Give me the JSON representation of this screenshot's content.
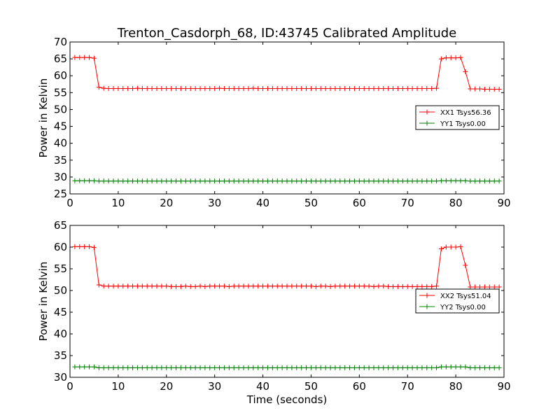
{
  "figure": {
    "title": "Trenton_Casdorph_68, ID:43745 Calibrated Amplitude",
    "xlabel": "Time (seconds)"
  },
  "colors": {
    "red": "#ff0000",
    "green": "#008000"
  },
  "chart_data": [
    {
      "type": "line",
      "ylabel": "Power in Kelvin",
      "xlim": [
        0,
        90
      ],
      "ylim": [
        25,
        70
      ],
      "xticks": [
        0,
        10,
        20,
        30,
        40,
        50,
        60,
        70,
        80,
        90
      ],
      "yticks": [
        25,
        30,
        35,
        40,
        45,
        50,
        55,
        60,
        65,
        70
      ],
      "grid": false,
      "legend_position": "right",
      "series": [
        {
          "name": "XX1 Tsys56.36",
          "color": "#ff0000",
          "marker": "+",
          "x": [
            1,
            2,
            3,
            4,
            5,
            6,
            7,
            8,
            9,
            10,
            11,
            12,
            13,
            14,
            15,
            16,
            17,
            18,
            19,
            20,
            21,
            22,
            23,
            24,
            25,
            26,
            27,
            28,
            29,
            30,
            31,
            32,
            33,
            34,
            35,
            36,
            37,
            38,
            39,
            40,
            41,
            42,
            43,
            44,
            45,
            46,
            47,
            48,
            49,
            50,
            51,
            52,
            53,
            54,
            55,
            56,
            57,
            58,
            59,
            60,
            61,
            62,
            63,
            64,
            65,
            66,
            67,
            68,
            69,
            70,
            71,
            72,
            73,
            74,
            75,
            76,
            77,
            78,
            79,
            80,
            81,
            82,
            83,
            84,
            85,
            86,
            87,
            88,
            89
          ],
          "y": [
            65.4,
            65.4,
            65.4,
            65.4,
            65.2,
            56.6,
            56.3,
            56.2,
            56.2,
            56.2,
            56.2,
            56.2,
            56.2,
            56.3,
            56.2,
            56.2,
            56.2,
            56.2,
            56.2,
            56.2,
            56.2,
            56.2,
            56.2,
            56.2,
            56.2,
            56.2,
            56.2,
            56.2,
            56.2,
            56.2,
            56.3,
            56.2,
            56.2,
            56.2,
            56.2,
            56.2,
            56.2,
            56.3,
            56.2,
            56.2,
            56.2,
            56.2,
            56.2,
            56.2,
            56.2,
            56.2,
            56.2,
            56.2,
            56.2,
            56.2,
            56.2,
            56.2,
            56.2,
            56.2,
            56.2,
            56.2,
            56.2,
            56.2,
            56.2,
            56.2,
            56.2,
            56.2,
            56.2,
            56.2,
            56.2,
            56.2,
            56.2,
            56.2,
            56.2,
            56.2,
            56.2,
            56.2,
            56.2,
            56.2,
            56.2,
            56.3,
            65.0,
            65.3,
            65.3,
            65.3,
            65.4,
            61.2,
            56.1,
            56.1,
            56.1,
            56.0,
            56.0,
            56.0,
            56.0
          ]
        },
        {
          "name": "YY1 Tsys0.00",
          "color": "#008000",
          "marker": "+",
          "x": [
            1,
            2,
            3,
            4,
            5,
            6,
            7,
            8,
            9,
            10,
            11,
            12,
            13,
            14,
            15,
            16,
            17,
            18,
            19,
            20,
            21,
            22,
            23,
            24,
            25,
            26,
            27,
            28,
            29,
            30,
            31,
            32,
            33,
            34,
            35,
            36,
            37,
            38,
            39,
            40,
            41,
            42,
            43,
            44,
            45,
            46,
            47,
            48,
            49,
            50,
            51,
            52,
            53,
            54,
            55,
            56,
            57,
            58,
            59,
            60,
            61,
            62,
            63,
            64,
            65,
            66,
            67,
            68,
            69,
            70,
            71,
            72,
            73,
            74,
            75,
            76,
            77,
            78,
            79,
            80,
            81,
            82,
            83,
            84,
            85,
            86,
            87,
            88,
            89
          ],
          "y": [
            28.9,
            28.9,
            28.9,
            28.9,
            28.9,
            28.8,
            28.8,
            28.8,
            28.8,
            28.8,
            28.8,
            28.8,
            28.8,
            28.8,
            28.8,
            28.8,
            28.8,
            28.8,
            28.8,
            28.8,
            28.8,
            28.8,
            28.8,
            28.8,
            28.8,
            28.8,
            28.8,
            28.8,
            28.8,
            28.8,
            28.8,
            28.8,
            28.8,
            28.8,
            28.8,
            28.8,
            28.8,
            28.8,
            28.8,
            28.8,
            28.8,
            28.8,
            28.8,
            28.8,
            28.8,
            28.8,
            28.8,
            28.8,
            28.8,
            28.8,
            28.8,
            28.8,
            28.8,
            28.8,
            28.8,
            28.8,
            28.8,
            28.8,
            28.8,
            28.8,
            28.8,
            28.8,
            28.8,
            28.8,
            28.8,
            28.8,
            28.8,
            28.8,
            28.8,
            28.8,
            28.8,
            28.8,
            28.8,
            28.8,
            28.8,
            28.8,
            28.9,
            28.9,
            28.9,
            28.9,
            28.9,
            28.9,
            28.8,
            28.8,
            28.8,
            28.8,
            28.8,
            28.8,
            28.8
          ]
        }
      ]
    },
    {
      "type": "line",
      "ylabel": "Power in Kelvin",
      "xlabel": "Time (seconds)",
      "xlim": [
        0,
        90
      ],
      "ylim": [
        30,
        65
      ],
      "xticks": [
        0,
        10,
        20,
        30,
        40,
        50,
        60,
        70,
        80,
        90
      ],
      "yticks": [
        30,
        35,
        40,
        45,
        50,
        55,
        60,
        65
      ],
      "grid": false,
      "legend_position": "right",
      "series": [
        {
          "name": "XX2 Tsys51.04",
          "color": "#ff0000",
          "marker": "+",
          "x": [
            1,
            2,
            3,
            4,
            5,
            6,
            7,
            8,
            9,
            10,
            11,
            12,
            13,
            14,
            15,
            16,
            17,
            18,
            19,
            20,
            21,
            22,
            23,
            24,
            25,
            26,
            27,
            28,
            29,
            30,
            31,
            32,
            33,
            34,
            35,
            36,
            37,
            38,
            39,
            40,
            41,
            42,
            43,
            44,
            45,
            46,
            47,
            48,
            49,
            50,
            51,
            52,
            53,
            54,
            55,
            56,
            57,
            58,
            59,
            60,
            61,
            62,
            63,
            64,
            65,
            66,
            67,
            68,
            69,
            70,
            71,
            72,
            73,
            74,
            75,
            76,
            77,
            78,
            79,
            80,
            81,
            82,
            83,
            84,
            85,
            86,
            87,
            88,
            89
          ],
          "y": [
            60.1,
            60.1,
            60.1,
            60.1,
            59.9,
            51.3,
            51.0,
            51.0,
            51.0,
            51.0,
            51.0,
            51.0,
            51.0,
            51.0,
            51.0,
            51.0,
            51.0,
            51.0,
            51.0,
            51.0,
            50.9,
            50.9,
            50.9,
            51.0,
            50.9,
            50.9,
            51.0,
            50.9,
            51.0,
            51.0,
            51.0,
            51.0,
            50.9,
            51.0,
            51.0,
            51.0,
            51.0,
            51.0,
            51.0,
            51.0,
            51.0,
            51.0,
            51.0,
            51.0,
            51.0,
            51.0,
            51.0,
            51.0,
            51.0,
            51.0,
            50.9,
            51.0,
            51.0,
            50.9,
            51.0,
            51.0,
            51.0,
            51.0,
            51.0,
            51.0,
            51.0,
            51.0,
            50.9,
            51.0,
            51.0,
            50.9,
            50.9,
            50.9,
            50.9,
            50.9,
            50.9,
            50.9,
            50.9,
            50.9,
            50.9,
            51.0,
            59.6,
            60.0,
            60.0,
            60.0,
            60.1,
            55.8,
            50.8,
            50.8,
            50.8,
            50.8,
            50.8,
            50.8,
            50.8
          ]
        },
        {
          "name": "YY2 Tsys0.00",
          "color": "#008000",
          "marker": "+",
          "x": [
            1,
            2,
            3,
            4,
            5,
            6,
            7,
            8,
            9,
            10,
            11,
            12,
            13,
            14,
            15,
            16,
            17,
            18,
            19,
            20,
            21,
            22,
            23,
            24,
            25,
            26,
            27,
            28,
            29,
            30,
            31,
            32,
            33,
            34,
            35,
            36,
            37,
            38,
            39,
            40,
            41,
            42,
            43,
            44,
            45,
            46,
            47,
            48,
            49,
            50,
            51,
            52,
            53,
            54,
            55,
            56,
            57,
            58,
            59,
            60,
            61,
            62,
            63,
            64,
            65,
            66,
            67,
            68,
            69,
            70,
            71,
            72,
            73,
            74,
            75,
            76,
            77,
            78,
            79,
            80,
            81,
            82,
            83,
            84,
            85,
            86,
            87,
            88,
            89
          ],
          "y": [
            32.4,
            32.4,
            32.4,
            32.4,
            32.4,
            32.2,
            32.2,
            32.2,
            32.2,
            32.2,
            32.2,
            32.2,
            32.2,
            32.2,
            32.2,
            32.2,
            32.2,
            32.2,
            32.2,
            32.2,
            32.2,
            32.2,
            32.2,
            32.2,
            32.2,
            32.2,
            32.2,
            32.2,
            32.2,
            32.2,
            32.2,
            32.2,
            32.2,
            32.2,
            32.2,
            32.2,
            32.2,
            32.2,
            32.2,
            32.2,
            32.2,
            32.2,
            32.2,
            32.2,
            32.2,
            32.2,
            32.2,
            32.2,
            32.2,
            32.2,
            32.2,
            32.2,
            32.2,
            32.2,
            32.2,
            32.2,
            32.2,
            32.2,
            32.2,
            32.2,
            32.2,
            32.2,
            32.2,
            32.2,
            32.2,
            32.2,
            32.2,
            32.2,
            32.2,
            32.2,
            32.2,
            32.2,
            32.2,
            32.2,
            32.2,
            32.2,
            32.4,
            32.4,
            32.4,
            32.4,
            32.4,
            32.4,
            32.2,
            32.2,
            32.2,
            32.2,
            32.2,
            32.2,
            32.2
          ]
        }
      ]
    }
  ]
}
